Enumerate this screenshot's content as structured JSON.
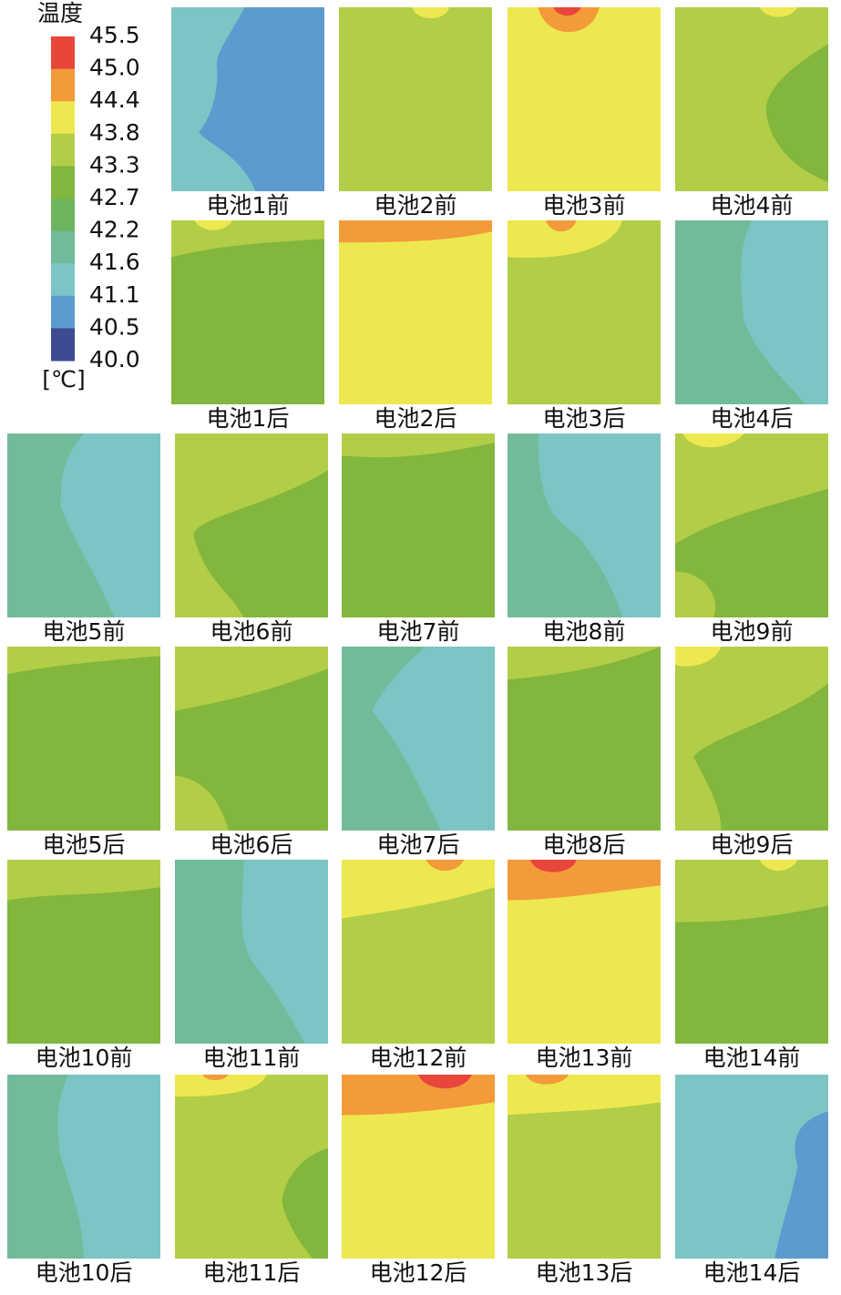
{
  "legend": {
    "title": "温度",
    "unit": "[℃]",
    "labels": [
      "45.5",
      "45.0",
      "44.4",
      "43.8",
      "43.3",
      "42.7",
      "42.2",
      "41.6",
      "41.1",
      "40.5",
      "40.0"
    ],
    "colors": [
      "#e8463a",
      "#f39a3b",
      "#ede84f",
      "#b2cd47",
      "#82b63d",
      "#6eb45f",
      "#72bb9a",
      "#7cc5c5",
      "#5b9bcf",
      "#3f4a94"
    ]
  },
  "panels": [
    "电池1前",
    "电池2前",
    "电池3前",
    "电池4前",
    "电池1后",
    "电池2后",
    "电池3后",
    "电池4后",
    "电池5前",
    "电池6前",
    "电池7前",
    "电池8前",
    "电池9前",
    "电池5后",
    "电池6后",
    "电池7后",
    "电池8后",
    "电池9后",
    "电池10前",
    "电池11前",
    "电池12前",
    "电池13前",
    "电池14前",
    "电池10后",
    "电池11后",
    "电池12后",
    "电池13后",
    "电池14后"
  ]
}
